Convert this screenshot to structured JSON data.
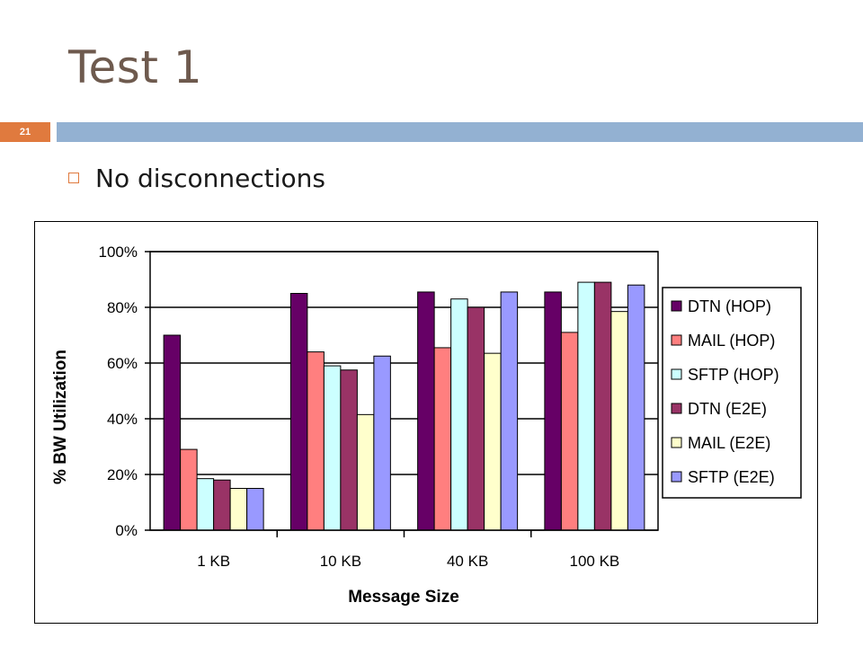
{
  "slide": {
    "title": "Test 1",
    "slide_number": "21",
    "bullet": "No disconnections"
  },
  "colors": {
    "title": "#6e5a4e",
    "accent": "#e07a3e",
    "bar": "#93b1d2"
  },
  "chart_data": {
    "type": "bar",
    "title": "",
    "xlabel": "Message Size",
    "ylabel": "% BW Utilization",
    "categories": [
      "1 KB",
      "10 KB",
      "40 KB",
      "100 KB"
    ],
    "ylim": [
      0,
      100
    ],
    "yticks": [
      "0%",
      "20%",
      "40%",
      "60%",
      "80%",
      "100%"
    ],
    "grid": true,
    "legend_position": "right",
    "series": [
      {
        "name": "DTN (HOP)",
        "color": "#660066",
        "values": [
          70,
          85,
          85.5,
          85.5
        ]
      },
      {
        "name": "MAIL (HOP)",
        "color": "#ff7f7f",
        "values": [
          29,
          64,
          65.5,
          71
        ]
      },
      {
        "name": "SFTP (HOP)",
        "color": "#ccffff",
        "values": [
          18.5,
          59,
          83,
          89
        ]
      },
      {
        "name": "DTN (E2E)",
        "color": "#993366",
        "values": [
          18,
          57.5,
          80,
          89
        ]
      },
      {
        "name": "MAIL (E2E)",
        "color": "#ffffcc",
        "values": [
          15,
          41.5,
          63.5,
          78.5
        ]
      },
      {
        "name": "SFTP (E2E)",
        "color": "#9999ff",
        "values": [
          15,
          62.5,
          85.5,
          88
        ]
      }
    ]
  }
}
